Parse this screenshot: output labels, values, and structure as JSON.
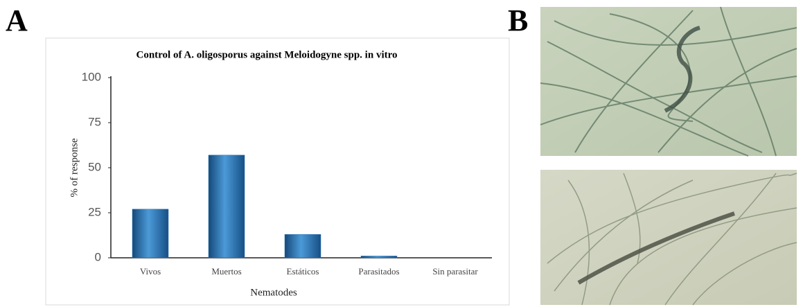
{
  "panels": [
    "A",
    "B"
  ],
  "chart_data": {
    "type": "bar",
    "title": "Control of A. oligosporus against Meloidogyne spp. in vitro",
    "x_label": "Nematodes",
    "y_label": "% of response",
    "categories": [
      "Vivos",
      "Muertos",
      "Estáticos",
      "Parasitados",
      "Sin parasitar"
    ],
    "values": [
      27,
      57,
      13,
      1,
      0
    ],
    "color": "#2e75b6",
    "ylim": [
      0,
      100
    ],
    "yticks": [
      0,
      25,
      50,
      75,
      100
    ],
    "grid": false
  }
}
